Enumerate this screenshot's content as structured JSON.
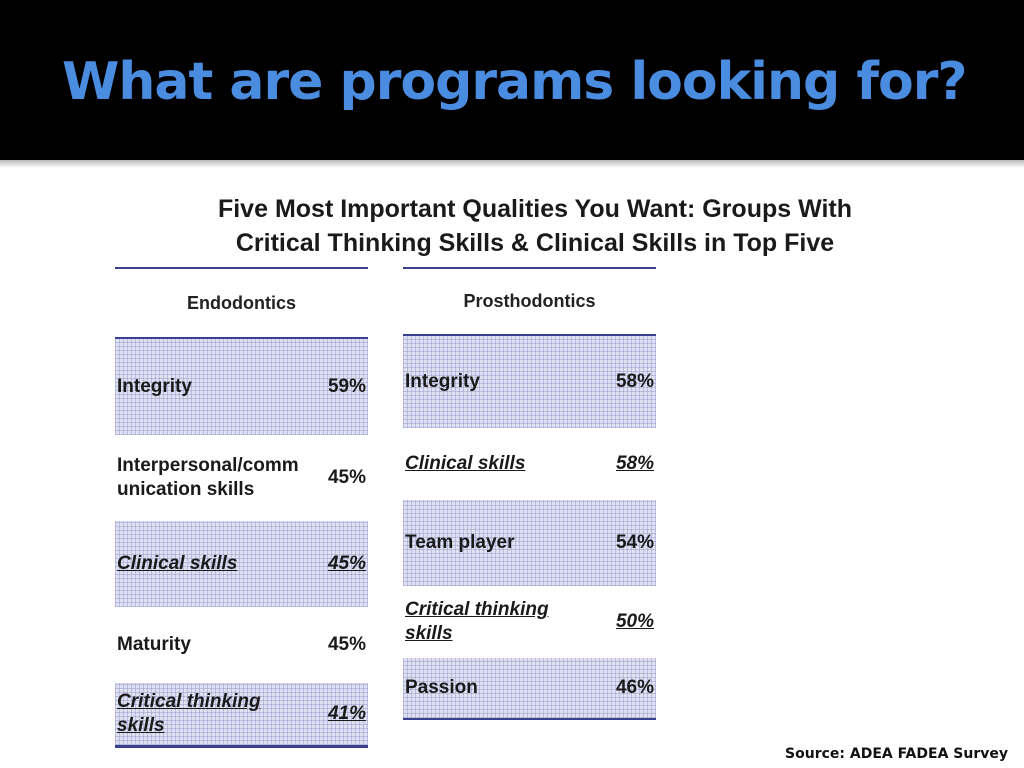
{
  "slide": {
    "title": "What are programs looking for?"
  },
  "table_title": {
    "line1": "Five Most Important Qualities You Want: Groups With",
    "line2": "Critical Thinking Skills & Clinical Skills in Top Five"
  },
  "endodontics": {
    "heading": "Endodontics",
    "rows": [
      {
        "label": "Integrity",
        "percent": "59%"
      },
      {
        "label": "Interpersonal/comm unication skills",
        "percent": "45%"
      },
      {
        "label": "Clinical skills",
        "percent": "45%"
      },
      {
        "label": "Maturity",
        "percent": "45%"
      },
      {
        "label": "Critical thinking skills",
        "percent": "41%"
      }
    ]
  },
  "prosthodontics": {
    "heading": "Prosthodontics",
    "rows": [
      {
        "label": "Integrity",
        "percent": "58%"
      },
      {
        "label": "Clinical skills",
        "percent": "58%"
      },
      {
        "label": "Team player",
        "percent": "54%"
      },
      {
        "label": "Critical thinking skills",
        "percent": "50%"
      },
      {
        "label": "Passion",
        "percent": "46%"
      }
    ]
  },
  "source": "Source: ADEA FADEA Survey",
  "colors": {
    "title_blue": "#4a8ce0",
    "header_bg": "#000000",
    "table_rule": "#3a3f90",
    "row_shade": "#dfe1f1"
  }
}
